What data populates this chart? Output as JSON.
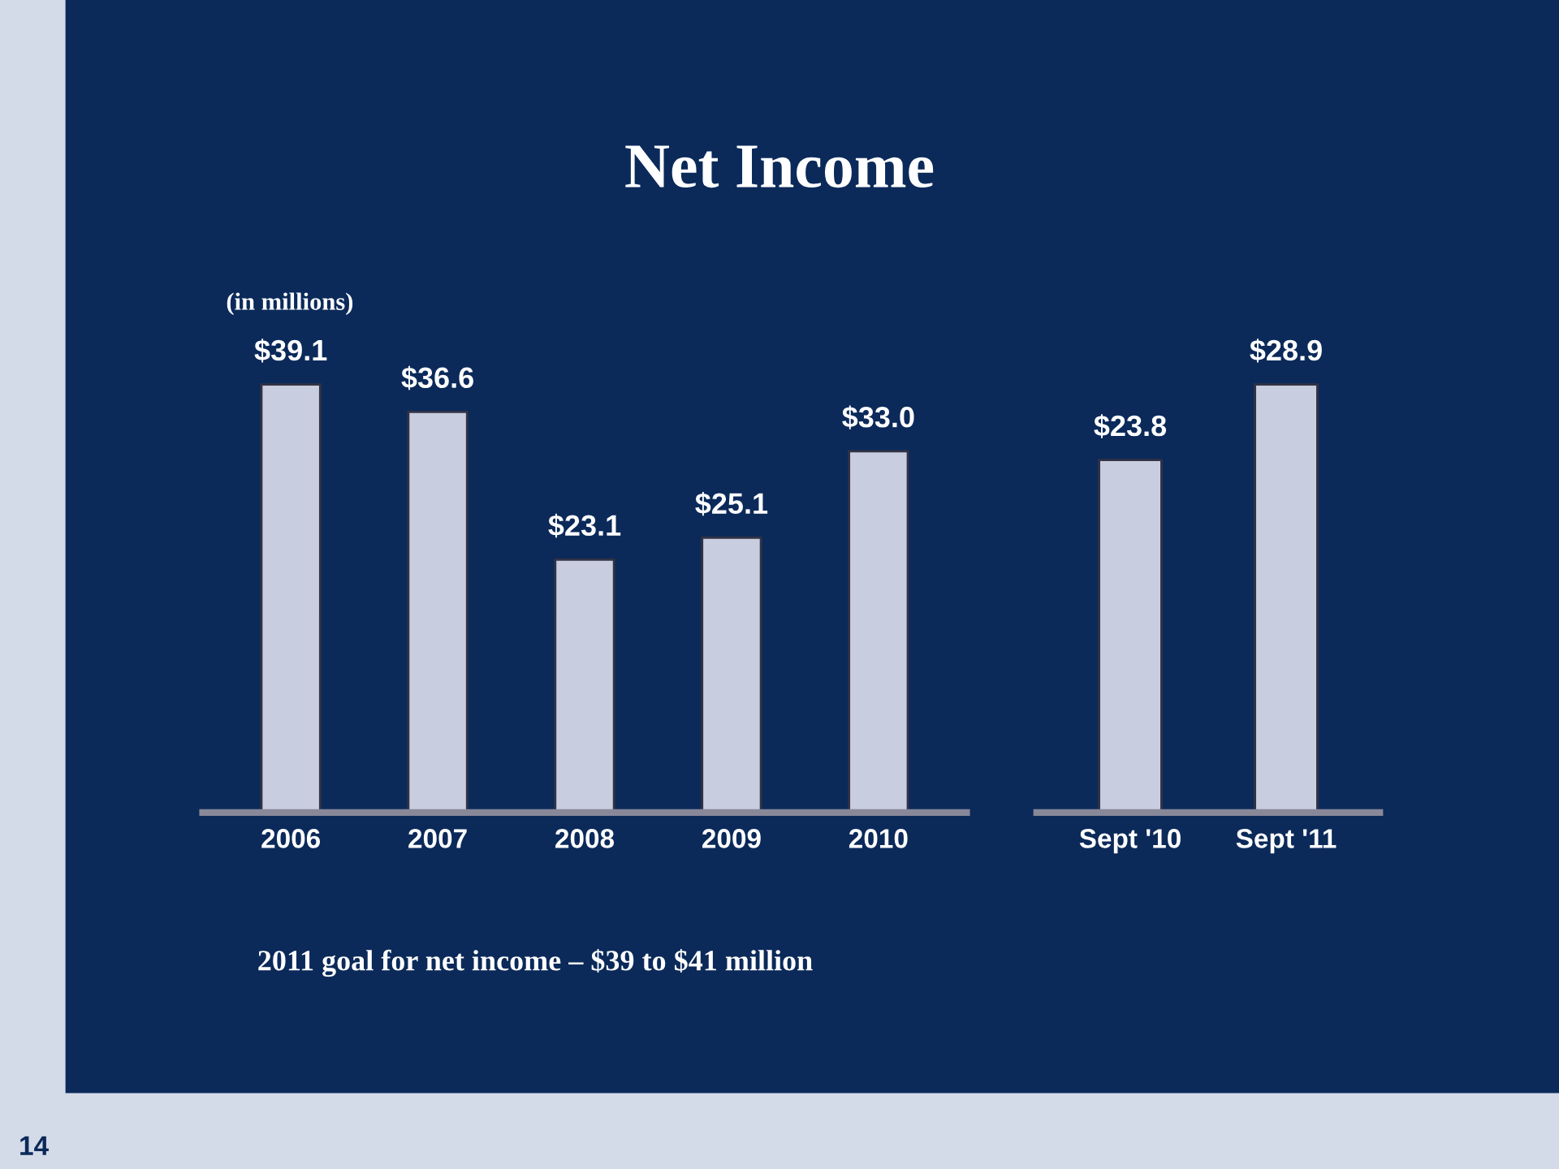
{
  "chart_data": [
    {
      "type": "bar",
      "title": "Net Income",
      "categories": [
        "2006",
        "2007",
        "2008",
        "2009",
        "2010"
      ],
      "values": [
        39.1,
        36.6,
        23.1,
        25.1,
        33.0
      ],
      "value_labels": [
        "$39.1",
        "$36.6",
        "$23.1",
        "$25.1",
        "$33.0"
      ],
      "color": "#c9cde0",
      "tick_labels": "x",
      "grid": false,
      "annotations": [
        "(in millions)",
        "2011 goal for net income – $39 to $41 million",
        "14"
      ]
    },
    {
      "type": "bar",
      "categories": [
        "Sept '10",
        "Sept '11"
      ],
      "values": [
        23.8,
        28.9
      ],
      "value_labels": [
        "$23.8",
        "$28.9"
      ],
      "color": "#c9cde0",
      "tick_labels": "x",
      "grid": false
    }
  ]
}
